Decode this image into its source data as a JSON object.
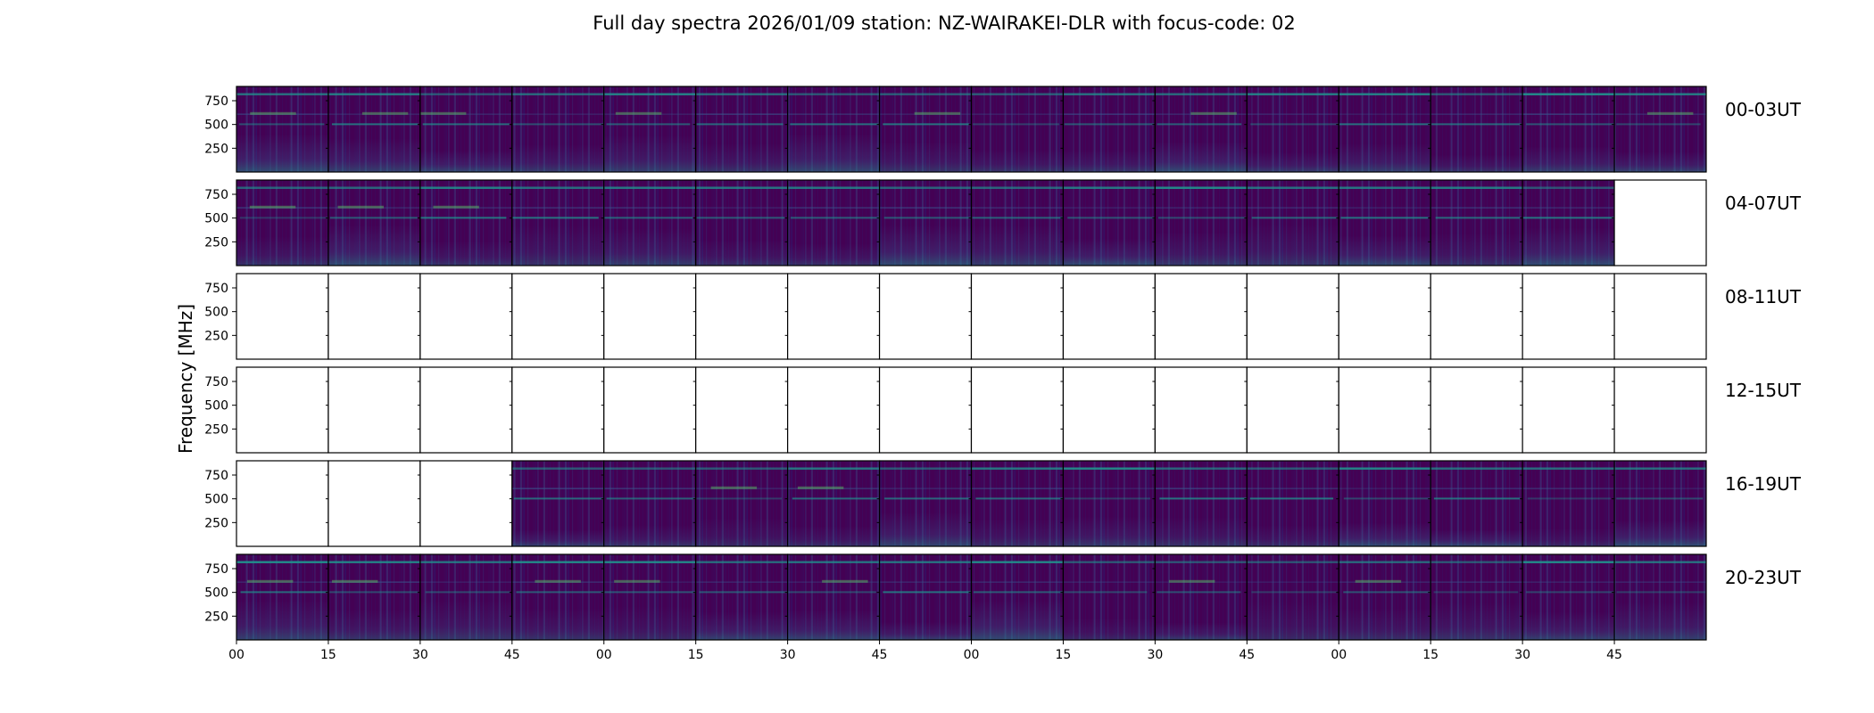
{
  "chart_data": {
    "type": "heatmap",
    "title": "Full day spectra 2026/01/09 station: NZ-WAIRAKEI-DLR with focus-code: 02",
    "ylabel": "Frequency [MHz]",
    "xlabel": "",
    "y_ticks": [
      "750",
      "500",
      "250"
    ],
    "y_tick_values": [
      750,
      500,
      250
    ],
    "ylim": [
      0,
      900
    ],
    "x_ticks": [
      "00",
      "15",
      "30",
      "45",
      "00",
      "15",
      "30",
      "45",
      "00",
      "15",
      "30",
      "45",
      "00",
      "15",
      "30",
      "45"
    ],
    "colormap": "viridis",
    "rows": [
      {
        "label": "00-03UT",
        "panels": [
          1,
          1,
          1,
          1,
          1,
          1,
          1,
          1,
          1,
          1,
          1,
          1,
          1,
          1,
          1,
          1
        ]
      },
      {
        "label": "04-07UT",
        "panels": [
          1,
          1,
          1,
          1,
          1,
          1,
          1,
          1,
          1,
          1,
          1,
          1,
          1,
          1,
          1,
          0
        ]
      },
      {
        "label": "08-11UT",
        "panels": [
          0,
          0,
          0,
          0,
          0,
          0,
          0,
          0,
          0,
          0,
          0,
          0,
          0,
          0,
          0,
          0
        ]
      },
      {
        "label": "12-15UT",
        "panels": [
          0,
          0,
          0,
          0,
          0,
          0,
          0,
          0,
          0,
          0,
          0,
          0,
          0,
          0,
          0,
          0
        ]
      },
      {
        "label": "16-19UT",
        "panels": [
          0,
          0,
          0,
          1,
          1,
          1,
          1,
          1,
          1,
          1,
          1,
          1,
          1,
          1,
          1,
          1
        ]
      },
      {
        "label": "20-23UT",
        "panels": [
          1,
          1,
          1,
          1,
          1,
          1,
          1,
          1,
          1,
          1,
          1,
          1,
          1,
          1,
          1,
          1
        ]
      }
    ]
  },
  "colors": {
    "background": "#440154",
    "mid": "#3b528b",
    "teal": "#21918c",
    "green": "#5ec962",
    "empty": "#ffffff"
  }
}
